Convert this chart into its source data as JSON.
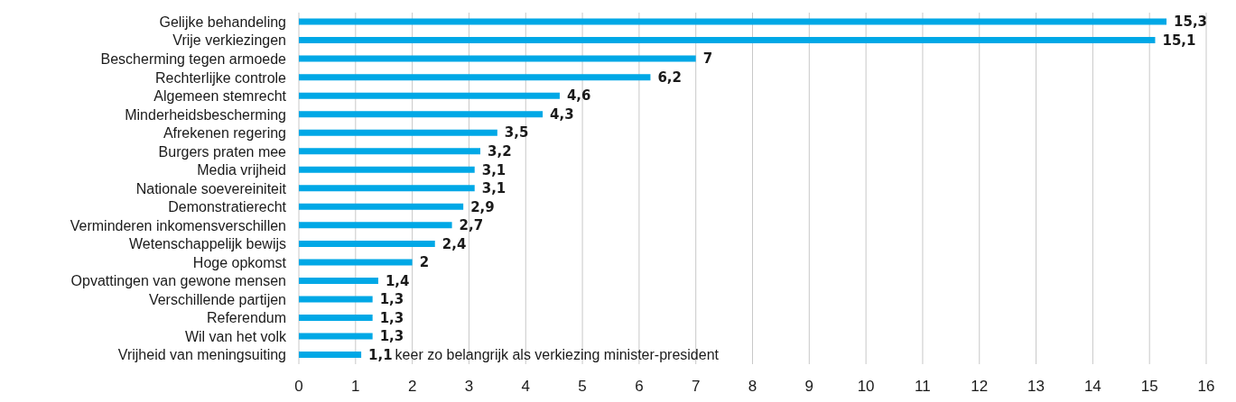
{
  "chart_data": {
    "type": "bar",
    "orientation": "horizontal",
    "categories": [
      "Gelijke behandeling",
      "Vrije verkiezingen",
      "Bescherming tegen armoede",
      "Rechterlijke controle",
      "Algemeen stemrecht",
      "Minderheidsbescherming",
      "Afrekenen regering",
      "Burgers praten mee",
      "Media vrijheid",
      "Nationale soevereiniteit",
      "Demonstratierecht",
      "Verminderen inkomensverschillen",
      "Wetenschappelijk bewijs",
      "Hoge opkomst",
      "Opvattingen van gewone mensen",
      "Verschillende partijen",
      "Referendum",
      "Wil van het volk",
      "Vrijheid van meningsuiting"
    ],
    "values": [
      15.3,
      15.1,
      7,
      6.2,
      4.6,
      4.3,
      3.5,
      3.2,
      3.1,
      3.1,
      2.9,
      2.7,
      2.4,
      2,
      1.4,
      1.3,
      1.3,
      1.3,
      1.1
    ],
    "value_labels": [
      "15,3",
      "15,1",
      "7",
      "6,2",
      "4,6",
      "4,3",
      "3,5",
      "3,2",
      "3,1",
      "3,1",
      "2,9",
      "2,7",
      "2,4",
      "2",
      "1,4",
      "1,3",
      "1,3",
      "1,3",
      "1,1"
    ],
    "color": "#00a8e6",
    "xlim": [
      0,
      16
    ],
    "xticks": [
      0,
      1,
      2,
      3,
      4,
      5,
      6,
      7,
      8,
      9,
      10,
      11,
      12,
      13,
      14,
      15,
      16
    ],
    "grid": "x",
    "annotations": [
      {
        "text": "keer zo belangrijk als verkiezing minister-president",
        "x": 1.1,
        "y": "Vrijheid van meningsuiting"
      }
    ]
  }
}
